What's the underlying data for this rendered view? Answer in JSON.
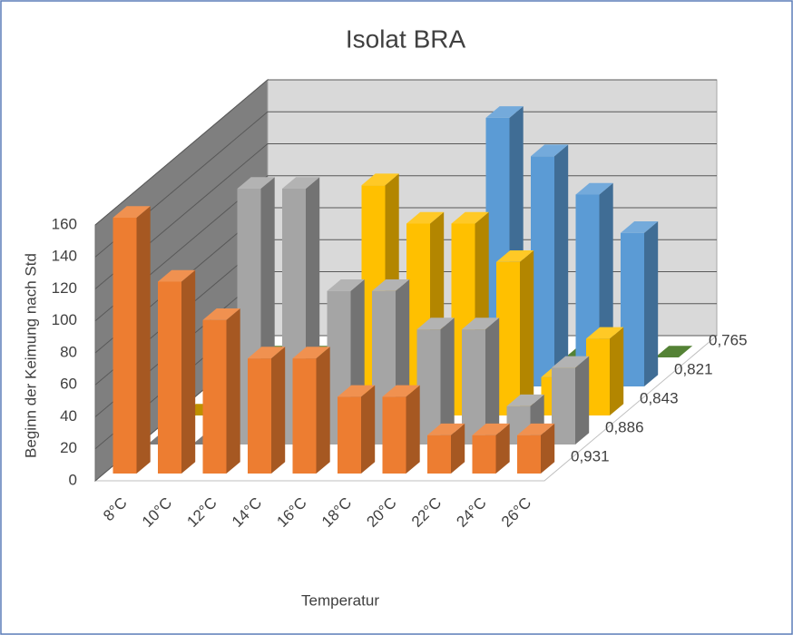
{
  "chart_data": {
    "type": "bar3d",
    "title": "Isolat BRA",
    "ylabel": "Beginn der Keimung nach Std",
    "xlabel": "Temperatur",
    "categories": [
      "8°C",
      "10°C",
      "12°C",
      "14°C",
      "16°C",
      "18°C",
      "20°C",
      "22°C",
      "24°C",
      "26°C"
    ],
    "series": [
      {
        "name": "0,931",
        "color": "#ed7d31",
        "values": [
          160,
          120,
          96,
          72,
          72,
          48,
          48,
          24,
          24,
          24
        ]
      },
      {
        "name": "0,886",
        "color": "#a5a5a5",
        "values": [
          0,
          0,
          160,
          160,
          96,
          96,
          72,
          72,
          24,
          48
        ]
      },
      {
        "name": "0,843",
        "color": "#ffc000",
        "values": [
          0,
          0,
          0,
          0,
          144,
          120,
          120,
          96,
          24,
          48
        ]
      },
      {
        "name": "0,821",
        "color": "#5b9bd5",
        "values": [
          0,
          0,
          0,
          0,
          0,
          0,
          168,
          144,
          120,
          96
        ]
      },
      {
        "name": "0,765",
        "color": "#70ad47",
        "values": [
          0,
          0,
          0,
          0,
          0,
          0,
          0,
          0,
          0,
          0
        ]
      }
    ],
    "ylim": [
      0,
      160
    ],
    "yticks": [
      0,
      20,
      40,
      60,
      80,
      100,
      120,
      140,
      160
    ],
    "grid": true
  }
}
